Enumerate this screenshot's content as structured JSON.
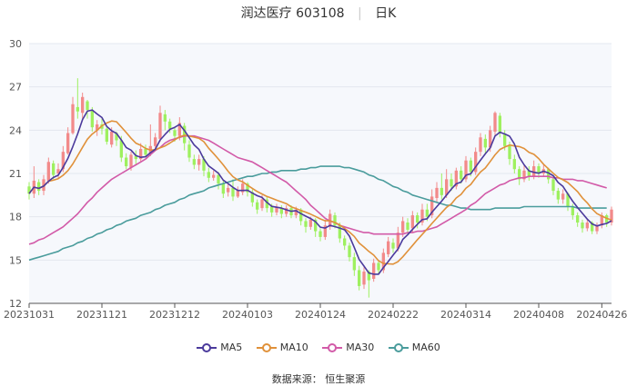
{
  "title": {
    "name": "润达医疗 603108",
    "period": "日K"
  },
  "source_text": "数据来源： 恒生聚源",
  "colors": {
    "up": "#f28a8a",
    "down": "#9ef05f",
    "ma5": "#4b3a9c",
    "ma10": "#e0913a",
    "ma30": "#d25aa8",
    "ma60": "#4a9c9c"
  },
  "chart_data": {
    "type": "candlestick",
    "y_ticks": [
      12,
      15,
      18,
      21,
      24,
      27,
      30
    ],
    "ylim": [
      12,
      30
    ],
    "x_tick_labels": [
      "20231031",
      "20231121",
      "20231212",
      "20240103",
      "20240124",
      "20240222",
      "20240314",
      "20240408",
      "20240426"
    ],
    "x_tick_index": [
      0,
      15,
      30,
      45,
      60,
      75,
      90,
      105,
      118
    ],
    "grid": true,
    "legend": [
      "MA5",
      "MA10",
      "MA30",
      "MA60"
    ],
    "legend_position": "bottom",
    "candles": [
      [
        20.1,
        19.6,
        20.4,
        19.2
      ],
      [
        19.6,
        20.5,
        21.5,
        19.3
      ],
      [
        20.4,
        19.8,
        20.6,
        19.5
      ],
      [
        19.8,
        20.6,
        20.9,
        19.5
      ],
      [
        20.5,
        21.8,
        22.1,
        20.3
      ],
      [
        21.7,
        20.9,
        21.9,
        20.6
      ],
      [
        21.0,
        21.3,
        21.7,
        20.7
      ],
      [
        21.3,
        22.5,
        22.9,
        21.1
      ],
      [
        22.4,
        23.8,
        24.2,
        22.3
      ],
      [
        23.8,
        25.8,
        26.3,
        23.7
      ],
      [
        25.6,
        25.3,
        27.6,
        24.8
      ],
      [
        25.2,
        26.3,
        26.6,
        24.7
      ],
      [
        26.0,
        25.4,
        26.1,
        24.8
      ],
      [
        25.4,
        24.2,
        25.6,
        23.9
      ],
      [
        24.0,
        24.4,
        24.7,
        23.6
      ],
      [
        24.4,
        24.1,
        24.8,
        23.7
      ],
      [
        24.1,
        23.2,
        24.2,
        23.0
      ],
      [
        23.0,
        23.9,
        24.2,
        22.8
      ],
      [
        23.8,
        23.3,
        23.9,
        22.9
      ],
      [
        23.3,
        22.1,
        23.6,
        21.8
      ],
      [
        22.1,
        21.5,
        22.4,
        21.3
      ],
      [
        21.4,
        22.3,
        22.5,
        21.2
      ],
      [
        22.2,
        22.0,
        22.6,
        21.6
      ],
      [
        22.0,
        22.7,
        23.1,
        21.8
      ],
      [
        22.7,
        22.3,
        23.0,
        22.1
      ],
      [
        22.4,
        22.9,
        24.4,
        22.2
      ],
      [
        22.9,
        23.5,
        23.8,
        22.6
      ],
      [
        23.4,
        25.2,
        25.7,
        23.2
      ],
      [
        25.1,
        24.6,
        25.4,
        24.0
      ],
      [
        24.6,
        24.1,
        24.8,
        23.8
      ],
      [
        24.0,
        23.6,
        24.2,
        23.2
      ],
      [
        23.6,
        24.5,
        24.9,
        23.3
      ],
      [
        24.3,
        23.1,
        24.5,
        22.6
      ],
      [
        23.0,
        22.1,
        23.3,
        21.8
      ],
      [
        22.0,
        21.6,
        22.3,
        21.3
      ],
      [
        21.6,
        22.0,
        22.3,
        21.2
      ],
      [
        22.0,
        21.2,
        22.2,
        20.8
      ],
      [
        21.1,
        20.7,
        21.4,
        20.4
      ],
      [
        20.7,
        20.9,
        21.2,
        20.5
      ],
      [
        20.9,
        20.3,
        21.1,
        19.9
      ],
      [
        20.3,
        19.6,
        20.5,
        19.3
      ],
      [
        19.7,
        20.0,
        20.3,
        19.4
      ],
      [
        20.0,
        19.4,
        20.6,
        19.1
      ],
      [
        19.4,
        19.8,
        20.1,
        19.3
      ],
      [
        19.7,
        20.3,
        20.6,
        19.5
      ],
      [
        20.3,
        19.7,
        20.4,
        19.4
      ],
      [
        19.7,
        19.0,
        19.9,
        18.7
      ],
      [
        19.0,
        18.5,
        19.2,
        18.2
      ],
      [
        18.6,
        19.2,
        19.5,
        18.4
      ],
      [
        19.2,
        18.6,
        19.4,
        18.3
      ],
      [
        18.7,
        18.3,
        18.9,
        18.0
      ],
      [
        18.3,
        18.7,
        18.9,
        18.1
      ],
      [
        18.6,
        18.2,
        18.8,
        17.9
      ],
      [
        18.2,
        18.6,
        18.8,
        18.0
      ],
      [
        18.6,
        18.1,
        18.8,
        17.9
      ],
      [
        18.1,
        18.5,
        18.7,
        17.9
      ],
      [
        18.5,
        17.7,
        18.6,
        17.4
      ],
      [
        17.7,
        17.3,
        17.9,
        16.9
      ],
      [
        17.3,
        17.8,
        18.0,
        17.1
      ],
      [
        17.8,
        17.0,
        17.9,
        16.6
      ],
      [
        17.0,
        16.6,
        17.2,
        16.3
      ],
      [
        16.6,
        17.4,
        17.8,
        16.4
      ],
      [
        17.3,
        18.2,
        18.5,
        17.1
      ],
      [
        18.1,
        17.4,
        18.3,
        17.2
      ],
      [
        17.4,
        16.5,
        17.6,
        16.2
      ],
      [
        16.5,
        16.0,
        16.7,
        15.7
      ],
      [
        16.0,
        15.2,
        16.2,
        14.9
      ],
      [
        15.2,
        14.3,
        15.5,
        13.9
      ],
      [
        14.3,
        13.2,
        14.6,
        12.9
      ],
      [
        13.3,
        14.2,
        14.5,
        13.0
      ],
      [
        14.2,
        13.6,
        14.3,
        12.4
      ],
      [
        13.7,
        14.8,
        15.1,
        13.5
      ],
      [
        14.8,
        14.3,
        15.0,
        14.0
      ],
      [
        14.3,
        15.5,
        15.8,
        14.1
      ],
      [
        15.4,
        16.3,
        16.6,
        15.2
      ],
      [
        16.2,
        15.8,
        16.5,
        15.5
      ],
      [
        15.8,
        16.9,
        17.3,
        15.6
      ],
      [
        16.9,
        17.7,
        18.0,
        16.6
      ],
      [
        17.6,
        17.1,
        17.9,
        16.8
      ],
      [
        17.2,
        18.1,
        18.4,
        16.9
      ],
      [
        18.1,
        17.6,
        18.3,
        17.2
      ],
      [
        17.6,
        18.5,
        18.9,
        17.4
      ],
      [
        18.5,
        18.0,
        18.9,
        17.7
      ],
      [
        18.1,
        19.4,
        19.9,
        17.9
      ],
      [
        19.3,
        20.0,
        20.4,
        19.0
      ],
      [
        20.0,
        19.5,
        21.0,
        19.2
      ],
      [
        19.5,
        20.6,
        21.3,
        19.3
      ],
      [
        20.6,
        20.1,
        21.0,
        19.8
      ],
      [
        20.1,
        21.2,
        21.4,
        19.9
      ],
      [
        21.2,
        20.6,
        21.5,
        20.3
      ],
      [
        20.6,
        21.9,
        22.2,
        20.4
      ],
      [
        21.9,
        21.1,
        22.1,
        20.8
      ],
      [
        21.1,
        22.5,
        22.8,
        20.9
      ],
      [
        22.5,
        23.5,
        23.8,
        22.2
      ],
      [
        23.4,
        22.8,
        23.7,
        22.4
      ],
      [
        22.8,
        24.0,
        24.3,
        22.5
      ],
      [
        23.9,
        25.2,
        25.3,
        23.6
      ],
      [
        25.0,
        23.8,
        25.2,
        23.5
      ],
      [
        23.7,
        22.9,
        24.0,
        22.6
      ],
      [
        22.9,
        22.0,
        23.2,
        21.6
      ],
      [
        22.0,
        21.3,
        22.3,
        21.0
      ],
      [
        21.3,
        20.6,
        21.5,
        20.2
      ],
      [
        20.6,
        21.2,
        21.6,
        20.4
      ],
      [
        21.2,
        20.8,
        21.5,
        20.5
      ],
      [
        20.8,
        21.5,
        21.9,
        20.6
      ],
      [
        21.5,
        21.0,
        21.7,
        20.7
      ],
      [
        21.0,
        21.3,
        21.6,
        20.8
      ],
      [
        21.3,
        20.6,
        21.4,
        20.3
      ],
      [
        20.6,
        19.8,
        20.8,
        19.5
      ],
      [
        19.8,
        19.2,
        20.0,
        18.9
      ],
      [
        19.2,
        19.6,
        19.9,
        18.9
      ],
      [
        19.6,
        18.7,
        19.7,
        18.4
      ],
      [
        18.7,
        18.1,
        18.9,
        17.8
      ],
      [
        18.1,
        17.6,
        18.3,
        17.3
      ],
      [
        17.6,
        17.2,
        17.8,
        16.9
      ],
      [
        17.2,
        17.6,
        17.8,
        17.0
      ],
      [
        17.6,
        17.0,
        17.7,
        16.8
      ],
      [
        17.0,
        17.4,
        17.6,
        16.8
      ],
      [
        17.4,
        18.1,
        18.3,
        17.2
      ],
      [
        18.1,
        17.6,
        18.2,
        17.3
      ],
      [
        17.6,
        18.5,
        18.7,
        17.4
      ]
    ],
    "ma30": [
      16.1,
      16.2,
      16.4,
      16.5,
      16.7,
      16.9,
      17.1,
      17.3,
      17.6,
      17.9,
      18.2,
      18.6,
      19.0,
      19.3,
      19.7,
      20.0,
      20.3,
      20.6,
      20.8,
      21.0,
      21.2,
      21.4,
      21.6,
      21.8,
      22.0,
      22.3,
      22.6,
      22.8,
      23.1,
      23.3,
      23.4,
      23.5,
      23.6,
      23.6,
      23.6,
      23.5,
      23.4,
      23.3,
      23.1,
      22.9,
      22.7,
      22.5,
      22.3,
      22.1,
      22.0,
      21.9,
      21.8,
      21.6,
      21.4,
      21.2,
      21.0,
      20.8,
      20.6,
      20.4,
      20.1,
      19.8,
      19.5,
      19.2,
      18.8,
      18.5,
      18.2,
      17.9,
      17.7,
      17.6,
      17.4,
      17.3,
      17.2,
      17.1,
      17.0,
      16.9,
      16.9,
      16.8,
      16.8,
      16.8,
      16.8,
      16.8,
      16.8,
      16.8,
      16.9,
      16.9,
      17.0,
      17.0,
      17.1,
      17.2,
      17.3,
      17.5,
      17.7,
      17.9,
      18.1,
      18.3,
      18.5,
      18.8,
      19.0,
      19.3,
      19.6,
      19.8,
      20.0,
      20.2,
      20.3,
      20.5,
      20.6,
      20.7,
      20.7,
      20.8,
      20.8,
      20.8,
      20.8,
      20.8,
      20.7,
      20.7,
      20.6,
      20.6,
      20.6,
      20.5,
      20.5,
      20.4,
      20.3,
      20.2,
      20.1,
      20.0
    ],
    "ma60": [
      15.0,
      15.1,
      15.2,
      15.3,
      15.4,
      15.5,
      15.6,
      15.8,
      15.9,
      16.0,
      16.2,
      16.3,
      16.5,
      16.6,
      16.8,
      16.9,
      17.1,
      17.2,
      17.4,
      17.5,
      17.7,
      17.8,
      17.9,
      18.1,
      18.2,
      18.3,
      18.5,
      18.6,
      18.8,
      18.9,
      19.0,
      19.2,
      19.3,
      19.5,
      19.6,
      19.7,
      19.8,
      20.0,
      20.1,
      20.2,
      20.3,
      20.4,
      20.5,
      20.6,
      20.7,
      20.8,
      20.8,
      20.9,
      21.0,
      21.0,
      21.1,
      21.1,
      21.2,
      21.2,
      21.2,
      21.2,
      21.3,
      21.3,
      21.4,
      21.4,
      21.5,
      21.5,
      21.5,
      21.5,
      21.5,
      21.4,
      21.4,
      21.3,
      21.2,
      21.1,
      20.9,
      20.8,
      20.6,
      20.5,
      20.3,
      20.1,
      20.0,
      19.8,
      19.7,
      19.5,
      19.4,
      19.3,
      19.2,
      19.1,
      19.0,
      18.9,
      18.8,
      18.8,
      18.7,
      18.6,
      18.6,
      18.5,
      18.5,
      18.5,
      18.5,
      18.5,
      18.6,
      18.6,
      18.6,
      18.6,
      18.6,
      18.6,
      18.7,
      18.7,
      18.7,
      18.7,
      18.7,
      18.7,
      18.7,
      18.7,
      18.7,
      18.7,
      18.7,
      18.6,
      18.6,
      18.6,
      18.6,
      18.6,
      18.6,
      18.6
    ]
  }
}
